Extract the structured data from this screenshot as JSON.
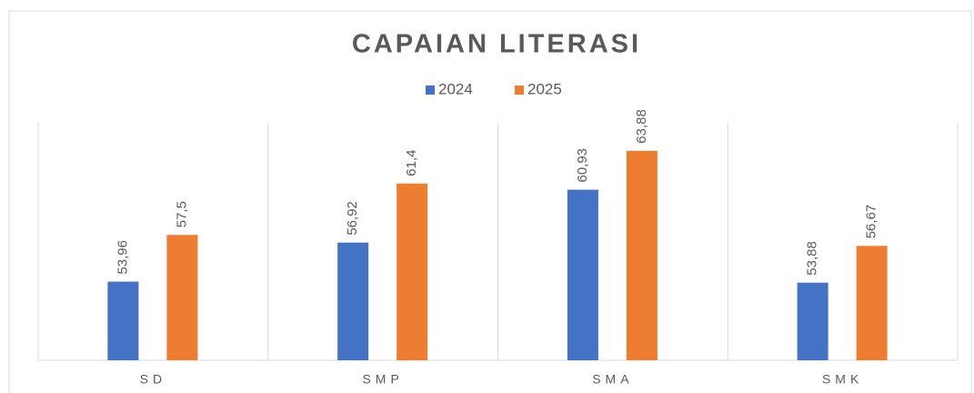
{
  "chart_data": {
    "type": "bar",
    "title": "CAPAIAN LITERASI",
    "categories": [
      "SD",
      "SMP",
      "SMA",
      "SMK"
    ],
    "series": [
      {
        "name": "2024",
        "color": "#4472c4",
        "values": [
          53.96,
          56.92,
          60.93,
          53.88
        ],
        "value_labels": [
          "53,96",
          "56,92",
          "60,93",
          "53,88"
        ]
      },
      {
        "name": "2025",
        "color": "#ed7d31",
        "values": [
          57.5,
          61.4,
          63.88,
          56.67
        ],
        "value_labels": [
          "57,5",
          "61,4",
          "63,88",
          "56,67"
        ]
      }
    ],
    "ylim": [
      48,
      66
    ],
    "legend": "top"
  }
}
